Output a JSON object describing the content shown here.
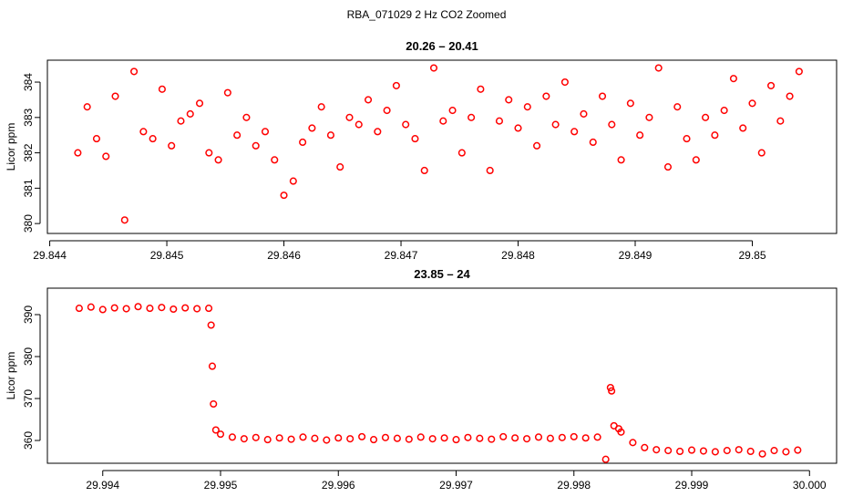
{
  "title": "RBA_071029  2 Hz CO2 Zoomed",
  "chart_data": [
    {
      "type": "scatter",
      "title": "20.26 – 20.41",
      "ylabel": "Licor ppm",
      "color": "#ff0000",
      "xlim": [
        29.84398,
        29.85072
      ],
      "ylim": [
        379.72,
        384.62
      ],
      "xticks": [
        29.844,
        29.845,
        29.846,
        29.847,
        29.848,
        29.849,
        29.85
      ],
      "yticks": [
        380,
        381,
        382,
        383,
        384
      ],
      "x": [
        29.84424,
        29.84432,
        29.8444,
        29.84448,
        29.84456,
        29.84464,
        29.84472,
        29.8448,
        29.84488,
        29.84496,
        29.84504,
        29.84512,
        29.8452,
        29.84528,
        29.84536,
        29.84544,
        29.84552,
        29.8456,
        29.84568,
        29.84576,
        29.84584,
        29.84592,
        29.846,
        29.84608,
        29.84616,
        29.84624,
        29.84632,
        29.8464,
        29.84648,
        29.84656,
        29.84664,
        29.84672,
        29.8468,
        29.84688,
        29.84696,
        29.84704,
        29.84712,
        29.8472,
        29.84728,
        29.84736,
        29.84744,
        29.84752,
        29.8476,
        29.84768,
        29.84776,
        29.84784,
        29.84792,
        29.848,
        29.84808,
        29.84816,
        29.84824,
        29.84832,
        29.8484,
        29.84848,
        29.84856,
        29.84864,
        29.84872,
        29.8488,
        29.84888,
        29.84896,
        29.84904,
        29.84912,
        29.8492,
        29.84928,
        29.84936,
        29.84944,
        29.84952,
        29.8496,
        29.84968,
        29.84976,
        29.84984,
        29.84992,
        29.85,
        29.85008,
        29.85016,
        29.85024,
        29.85032,
        29.8504
      ],
      "values": [
        382.0,
        383.3,
        382.4,
        381.9,
        383.6,
        380.1,
        384.3,
        382.6,
        382.4,
        383.8,
        382.2,
        382.9,
        383.1,
        383.4,
        382.0,
        381.8,
        383.7,
        382.5,
        383.0,
        382.2,
        382.6,
        381.8,
        380.8,
        381.2,
        382.3,
        382.7,
        383.3,
        382.5,
        381.6,
        383.0,
        382.8,
        383.5,
        382.6,
        383.2,
        383.9,
        382.8,
        382.4,
        381.5,
        384.4,
        382.9,
        383.2,
        382.0,
        383.0,
        383.8,
        381.5,
        382.9,
        383.5,
        382.7,
        383.3,
        382.2,
        383.6,
        382.8,
        384.0,
        382.6,
        383.1,
        382.3,
        383.6,
        382.8,
        381.8,
        383.4,
        382.5,
        383.0,
        384.4,
        381.6,
        383.3,
        382.4,
        381.8,
        383.0,
        382.5,
        383.2,
        384.1,
        382.7,
        383.4,
        382.0,
        383.9,
        382.9,
        383.6,
        384.3
      ]
    },
    {
      "type": "scatter",
      "title": "23.85 – 24",
      "ylabel": "Licor ppm",
      "color": "#ff0000",
      "xlim": [
        29.99353,
        30.00023
      ],
      "ylim": [
        354.57,
        396.3
      ],
      "xticks": [
        29.994,
        29.995,
        29.996,
        29.997,
        29.998,
        29.999,
        {
          "value": 30,
          "label": "30.000"
        }
      ],
      "yticks": [
        360,
        370,
        380,
        390
      ],
      "x": [
        29.9938,
        29.9939,
        29.994,
        29.9941,
        29.9942,
        29.9943,
        29.9944,
        29.9945,
        29.9946,
        29.9947,
        29.9948,
        29.9949,
        29.99492,
        29.99493,
        29.99494,
        29.99496,
        29.995,
        29.9951,
        29.9952,
        29.9953,
        29.9954,
        29.9955,
        29.9956,
        29.9957,
        29.9958,
        29.9959,
        29.996,
        29.9961,
        29.9962,
        29.9963,
        29.9964,
        29.9965,
        29.9966,
        29.9967,
        29.9968,
        29.9969,
        29.997,
        29.9971,
        29.9972,
        29.9973,
        29.9974,
        29.9975,
        29.9976,
        29.9977,
        29.9978,
        29.9979,
        29.998,
        29.9981,
        29.9982,
        29.99827,
        29.99831,
        29.99832,
        29.99834,
        29.99838,
        29.9984,
        29.9985,
        29.9986,
        29.9987,
        29.9988,
        29.9989,
        29.999,
        29.9991,
        29.9992,
        29.9993,
        29.9994,
        29.9995,
        29.9996,
        29.9997,
        29.9998,
        29.9999
      ],
      "values": [
        391.5,
        391.8,
        391.2,
        391.6,
        391.4,
        391.9,
        391.5,
        391.7,
        391.3,
        391.6,
        391.4,
        391.5,
        387.5,
        377.7,
        368.7,
        362.5,
        361.5,
        360.8,
        360.4,
        360.7,
        360.2,
        360.6,
        360.3,
        360.8,
        360.5,
        360.1,
        360.6,
        360.4,
        360.9,
        360.2,
        360.7,
        360.5,
        360.3,
        360.8,
        360.4,
        360.6,
        360.2,
        360.7,
        360.5,
        360.3,
        360.9,
        360.6,
        360.4,
        360.8,
        360.5,
        360.7,
        360.9,
        360.6,
        360.8,
        355.5,
        372.6,
        371.8,
        363.5,
        362.8,
        362.0,
        359.5,
        358.3,
        357.8,
        357.6,
        357.4,
        357.7,
        357.5,
        357.3,
        357.6,
        357.8,
        357.4,
        356.8,
        357.6,
        357.3,
        357.7
      ]
    }
  ]
}
